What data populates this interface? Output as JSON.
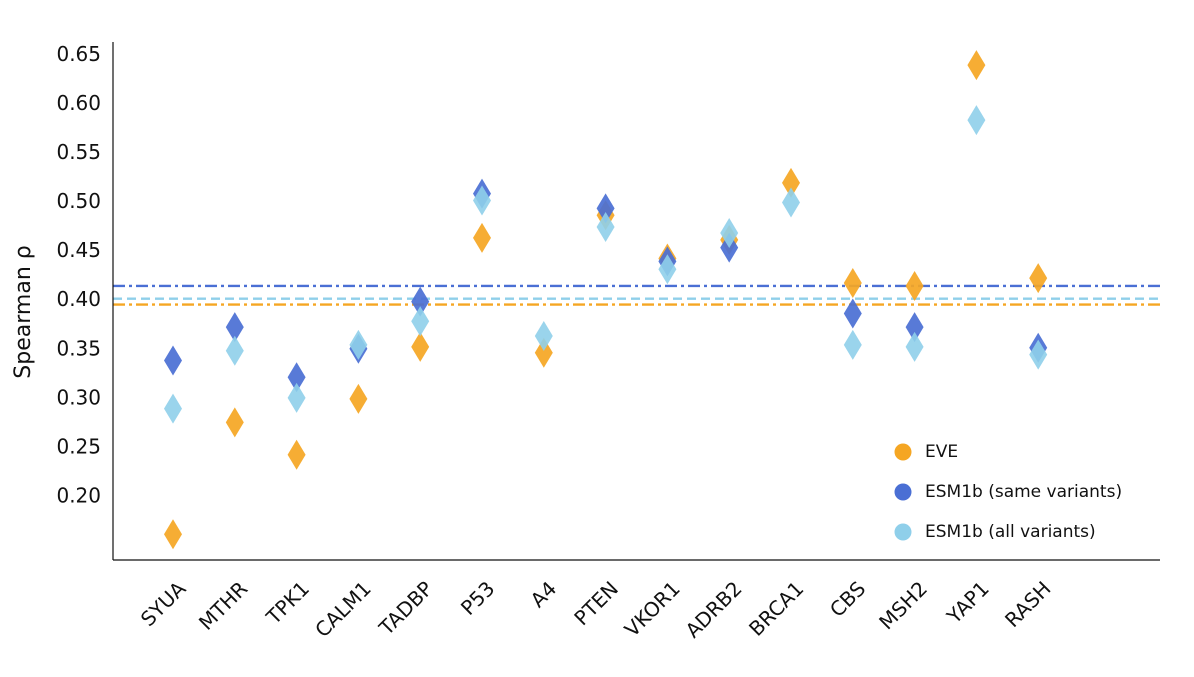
{
  "chart_data": {
    "type": "scatter",
    "title": "",
    "xlabel": "",
    "ylabel": "Spearman ρ",
    "ylim": [
      0.16,
      0.66
    ],
    "yticks": [
      0.2,
      0.25,
      0.3,
      0.35,
      0.4,
      0.45,
      0.5,
      0.55,
      0.6,
      0.65
    ],
    "ytick_labels": [
      "0.20",
      "0.25",
      "0.30",
      "0.35",
      "0.40",
      "0.45",
      "0.50",
      "0.55",
      "0.60",
      "0.65"
    ],
    "grid": false,
    "legend_position": "bottom-right",
    "categories": [
      "SYUA",
      "MTHR",
      "TPK1",
      "CALM1",
      "TADBP",
      "P53",
      "A4",
      "PTEN",
      "VKOR1",
      "ADRB2",
      "BRCA1",
      "CBS",
      "MSH2",
      "YAP1",
      "RASH"
    ],
    "series": [
      {
        "name": "EVE",
        "color": "#F5A623",
        "marker": "diamond",
        "values": [
          0.162,
          0.276,
          0.243,
          0.3,
          0.353,
          0.464,
          0.347,
          0.487,
          0.443,
          0.462,
          0.52,
          0.418,
          0.415,
          0.64,
          0.423
        ],
        "mean_line": 0.396,
        "mean_line_style": "dash-dot"
      },
      {
        "name": "ESM1b (same variants)",
        "color": "#4A6FD4",
        "marker": "diamond",
        "values": [
          0.339,
          0.373,
          0.322,
          0.351,
          0.399,
          0.509,
          null,
          0.494,
          0.44,
          0.454,
          null,
          0.387,
          0.373,
          null,
          0.352
        ],
        "mean_line": 0.415,
        "mean_line_style": "dash-dot"
      },
      {
        "name": "ESM1b (all variants)",
        "color": "#8FCFEA",
        "marker": "diamond",
        "values": [
          0.29,
          0.349,
          0.301,
          0.355,
          0.379,
          0.502,
          0.364,
          0.475,
          0.432,
          0.469,
          0.5,
          0.355,
          0.353,
          0.584,
          0.345
        ],
        "mean_line": 0.402,
        "mean_line_style": "dashed"
      }
    ]
  },
  "overlap_colors": {
    "ESM1b (all variants)": "#7BB5E4"
  }
}
